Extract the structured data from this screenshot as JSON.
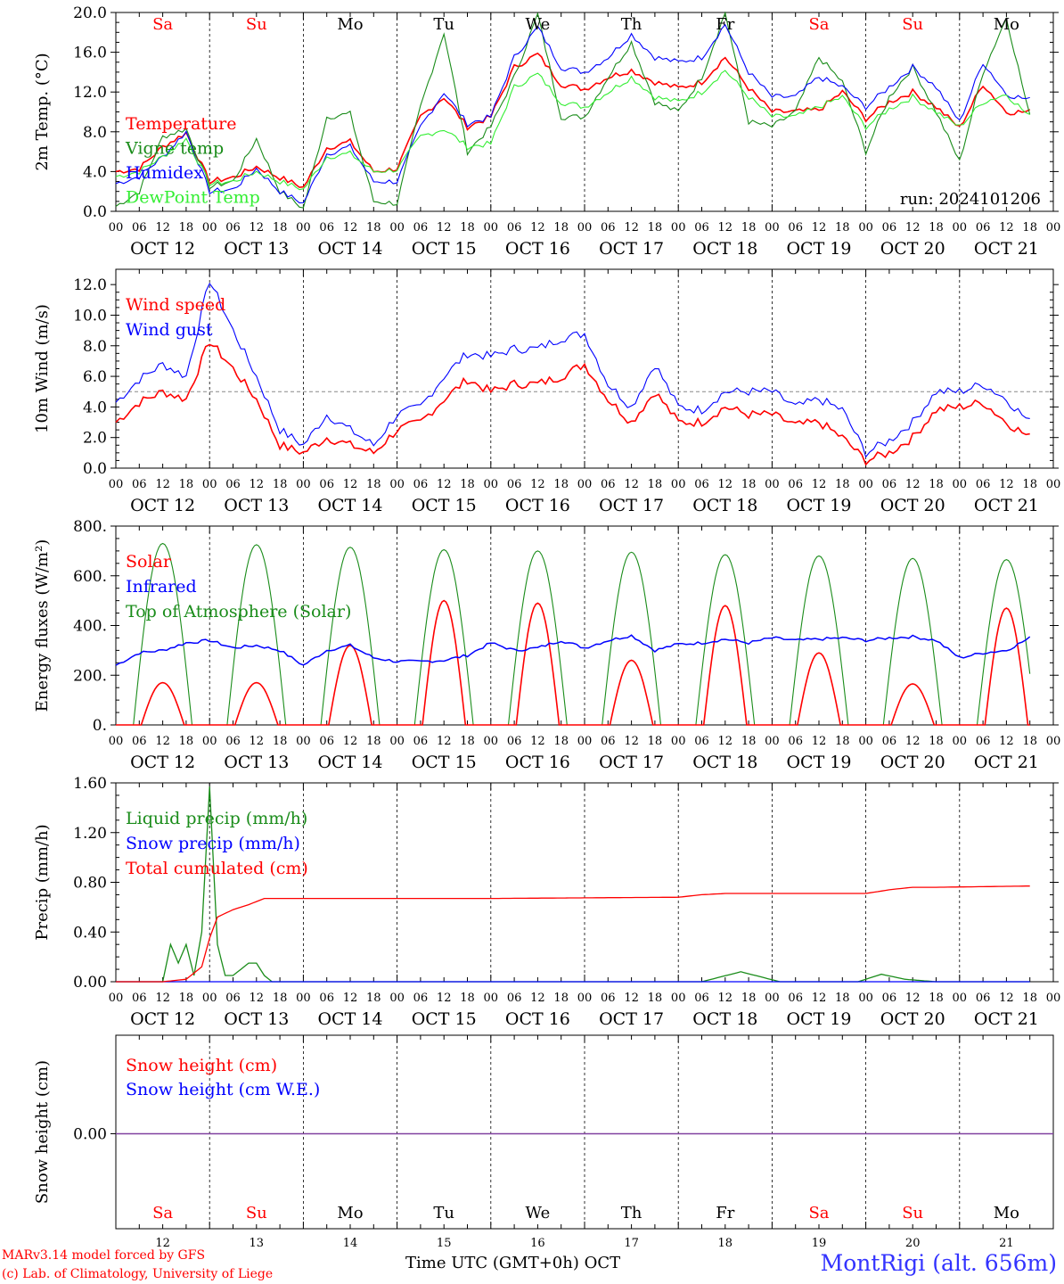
{
  "chart_data": [
    {
      "type": "line",
      "ylabel": "2m Temp. (°C)",
      "ylim": [
        0,
        20
      ],
      "yticks": [
        "0.0",
        "4.0",
        "8.0",
        "12.0",
        "16.0",
        "20.0"
      ],
      "annotation": "run: 2024101206",
      "series": [
        {
          "name": "Temperature",
          "color": "#ff0000",
          "hours": [
            0,
            6,
            12,
            18,
            24,
            30,
            36,
            42,
            48,
            54,
            60,
            66,
            72,
            78,
            84,
            90,
            96,
            102,
            108,
            114,
            120,
            126,
            132,
            138,
            144,
            150,
            156,
            162,
            168,
            174,
            180,
            186,
            192,
            198,
            204,
            210,
            216,
            222,
            228,
            234
          ],
          "values": [
            4.0,
            4.3,
            6.5,
            7.9,
            3.0,
            3.4,
            4.5,
            3.4,
            2.4,
            6.4,
            7.0,
            4.0,
            4.3,
            9.5,
            11.5,
            8.5,
            9.5,
            14.5,
            15.8,
            12.8,
            12.3,
            13.5,
            14.2,
            13.0,
            12.4,
            13.0,
            15.5,
            12.4,
            10.0,
            10.0,
            10.2,
            12.0,
            9.3,
            11.0,
            12.0,
            10.5,
            8.4,
            12.8,
            10.0,
            10.0
          ]
        },
        {
          "name": "Vigne temp",
          "color": "#1a8c1a",
          "hours": [
            0,
            6,
            12,
            18,
            24,
            30,
            36,
            42,
            48,
            54,
            60,
            66,
            72,
            78,
            84,
            90,
            96,
            102,
            108,
            114,
            120,
            126,
            132,
            138,
            144,
            150,
            156,
            162,
            168,
            174,
            180,
            186,
            192,
            198,
            204,
            210,
            216,
            222,
            228,
            234
          ],
          "values": [
            0.5,
            2.0,
            7.5,
            8.3,
            2.5,
            3.0,
            7.3,
            2.0,
            0.3,
            9.5,
            9.8,
            1.0,
            0.8,
            10.5,
            18.0,
            6.0,
            8.5,
            13.5,
            19.8,
            9.5,
            9.5,
            13.5,
            17.0,
            11.0,
            10.0,
            13.5,
            20.0,
            9.0,
            8.5,
            10.0,
            15.5,
            13.0,
            6.0,
            11.5,
            14.5,
            10.0,
            5.0,
            14.0,
            19.5,
            9.5
          ]
        },
        {
          "name": "Humidex",
          "color": "#0000ff",
          "hours": [
            0,
            6,
            12,
            18,
            24,
            30,
            36,
            42,
            48,
            54,
            60,
            66,
            72,
            78,
            84,
            90,
            96,
            102,
            108,
            114,
            120,
            126,
            132,
            138,
            144,
            150,
            156,
            162,
            168,
            174,
            180,
            186,
            192,
            198,
            204,
            210,
            216,
            222,
            228,
            234
          ],
          "values": [
            2.8,
            3.5,
            5.5,
            8.0,
            2.0,
            2.2,
            4.3,
            2.0,
            0.8,
            5.8,
            6.5,
            3.0,
            3.0,
            8.5,
            12.0,
            8.8,
            9.5,
            15.5,
            18.5,
            14.5,
            14.0,
            15.5,
            17.8,
            15.5,
            15.0,
            15.5,
            18.8,
            14.0,
            11.5,
            11.5,
            13.5,
            12.5,
            10.5,
            12.5,
            14.5,
            12.5,
            9.0,
            15.0,
            11.8,
            11.2
          ]
        },
        {
          "name": "DewPoint Temp",
          "color": "#33ee33",
          "hours": [
            0,
            6,
            12,
            18,
            24,
            30,
            36,
            42,
            48,
            54,
            60,
            66,
            72,
            78,
            84,
            90,
            96,
            102,
            108,
            114,
            120,
            126,
            132,
            138,
            144,
            150,
            156,
            162,
            168,
            174,
            180,
            186,
            192,
            198,
            204,
            210,
            216,
            222,
            228,
            234
          ],
          "values": [
            3.5,
            4.0,
            5.5,
            7.3,
            2.8,
            3.0,
            4.0,
            3.0,
            2.2,
            5.5,
            5.8,
            4.0,
            4.2,
            7.5,
            8.3,
            6.5,
            6.8,
            12.5,
            13.8,
            11.0,
            10.5,
            12.0,
            13.5,
            11.5,
            11.0,
            12.0,
            14.2,
            11.5,
            9.5,
            9.5,
            10.5,
            11.5,
            8.5,
            10.3,
            11.5,
            10.0,
            8.5,
            11.0,
            11.8,
            9.5
          ]
        }
      ]
    },
    {
      "type": "line",
      "ylabel": "10m Wind (m/s)",
      "ylim": [
        0,
        13
      ],
      "yticks": [
        "0.0",
        "2.0",
        "4.0",
        "6.0",
        "8.0",
        "10.0",
        "12.0"
      ],
      "reference_line": 5.0,
      "series": [
        {
          "name": "Wind speed",
          "color": "#ff0000",
          "hours": [
            0,
            6,
            12,
            18,
            24,
            30,
            36,
            42,
            48,
            54,
            60,
            66,
            72,
            78,
            84,
            90,
            96,
            102,
            108,
            114,
            120,
            126,
            132,
            138,
            144,
            150,
            156,
            162,
            168,
            174,
            180,
            186,
            192,
            198,
            204,
            210,
            216,
            222,
            228,
            234
          ],
          "values": [
            3.0,
            4.3,
            5.0,
            4.5,
            8.3,
            6.5,
            4.5,
            1.5,
            1.0,
            2.0,
            1.5,
            1.0,
            2.5,
            3.0,
            4.5,
            5.8,
            5.0,
            5.5,
            5.5,
            6.0,
            6.8,
            4.5,
            3.0,
            5.0,
            3.0,
            3.0,
            4.0,
            3.5,
            3.5,
            2.8,
            3.0,
            2.0,
            0.5,
            1.0,
            2.0,
            3.8,
            4.0,
            4.3,
            3.0,
            2.0
          ]
        },
        {
          "name": "Wind gust",
          "color": "#0000ff",
          "hours": [
            0,
            6,
            12,
            18,
            24,
            30,
            36,
            42,
            48,
            54,
            60,
            66,
            72,
            78,
            84,
            90,
            96,
            102,
            108,
            114,
            120,
            126,
            132,
            138,
            144,
            150,
            156,
            162,
            168,
            174,
            180,
            186,
            192,
            198,
            204,
            210,
            216,
            222,
            228,
            234
          ],
          "values": [
            4.3,
            5.8,
            6.8,
            6.0,
            12.3,
            9.0,
            6.0,
            2.5,
            1.5,
            3.5,
            2.5,
            1.5,
            3.5,
            4.0,
            6.0,
            7.5,
            7.3,
            7.8,
            7.8,
            8.5,
            8.8,
            5.5,
            4.0,
            6.8,
            4.0,
            3.8,
            5.0,
            5.0,
            5.0,
            4.0,
            4.5,
            3.8,
            1.0,
            1.8,
            3.0,
            5.0,
            5.0,
            5.5,
            4.5,
            3.0
          ]
        }
      ]
    },
    {
      "type": "line",
      "ylabel": "Energy fluxes (W/m²)",
      "ylim": [
        0,
        800
      ],
      "yticks": [
        "0.",
        "200.",
        "400.",
        "600.",
        "800."
      ],
      "series": [
        {
          "name": "Solar",
          "color": "#ff0000",
          "peaks": [
            170,
            170,
            320,
            500,
            490,
            260,
            480,
            290,
            165,
            470
          ]
        },
        {
          "name": "Infrared",
          "color": "#0000ff",
          "hours": [
            0,
            6,
            12,
            18,
            24,
            30,
            36,
            42,
            48,
            54,
            60,
            66,
            72,
            78,
            84,
            90,
            96,
            102,
            108,
            114,
            120,
            126,
            132,
            138,
            144,
            150,
            156,
            162,
            168,
            174,
            180,
            186,
            192,
            198,
            204,
            210,
            216,
            222,
            228,
            234
          ],
          "values": [
            240,
            290,
            300,
            330,
            340,
            310,
            320,
            300,
            240,
            300,
            320,
            270,
            255,
            255,
            260,
            280,
            330,
            300,
            310,
            340,
            310,
            340,
            360,
            300,
            325,
            330,
            345,
            330,
            350,
            340,
            345,
            350,
            340,
            350,
            355,
            340,
            270,
            290,
            300,
            350
          ]
        },
        {
          "name": "Top of Atmosphere (Solar)",
          "color": "#1a8c1a",
          "peaks": [
            730,
            725,
            715,
            705,
            700,
            695,
            685,
            680,
            670,
            665
          ]
        }
      ]
    },
    {
      "type": "line",
      "ylabel": "Precip (mm/h)",
      "ylim": [
        0,
        1.6
      ],
      "yticks": [
        "0.00",
        "0.40",
        "0.80",
        "1.20",
        "1.60"
      ],
      "series": [
        {
          "name": "Liquid precip (mm/h)",
          "color": "#1a8c1a",
          "hours": [
            0,
            12,
            14,
            16,
            18,
            20,
            22,
            24,
            26,
            28,
            30,
            32,
            34,
            36,
            38,
            40,
            48,
            96,
            144,
            150,
            160,
            170,
            190,
            196,
            202,
            210,
            234
          ],
          "values": [
            0,
            0,
            0.3,
            0.15,
            0.3,
            0.05,
            0.4,
            1.57,
            0.3,
            0.05,
            0.05,
            0.1,
            0.15,
            0.15,
            0.05,
            0,
            0,
            0,
            0,
            0,
            0.08,
            0,
            0,
            0.06,
            0.02,
            0,
            0
          ]
        },
        {
          "name": "Snow precip (mm/h)",
          "color": "#0000ff",
          "hours": [
            0,
            234
          ],
          "values": [
            0,
            0
          ]
        },
        {
          "name": "Total cumulated (cm)",
          "color": "#ff0000",
          "hours": [
            0,
            12,
            18,
            22,
            24,
            26,
            30,
            34,
            38,
            48,
            96,
            144,
            150,
            156,
            192,
            198,
            204,
            210,
            234
          ],
          "values": [
            0,
            0,
            0.02,
            0.12,
            0.35,
            0.52,
            0.58,
            0.62,
            0.67,
            0.67,
            0.67,
            0.68,
            0.7,
            0.71,
            0.71,
            0.74,
            0.76,
            0.76,
            0.77
          ]
        }
      ]
    },
    {
      "type": "line",
      "ylabel": "Snow height (cm)",
      "yticks": [
        "0.00"
      ],
      "series": [
        {
          "name": "Snow height (cm)",
          "color": "#ff0000",
          "hours": [
            0,
            234
          ],
          "values": [
            0,
            0
          ]
        },
        {
          "name": "Snow height (cm W.E.)",
          "color": "#0000ff",
          "hours": [
            0,
            234
          ],
          "values": [
            0,
            0
          ]
        }
      ]
    }
  ],
  "x_axis": {
    "hour_ticks": [
      "00",
      "06",
      "12",
      "18"
    ],
    "end_tick": "00",
    "day_labels": [
      "OCT 12",
      "OCT 13",
      "OCT 14",
      "OCT 15",
      "OCT 16",
      "OCT 17",
      "OCT 18",
      "OCT 19",
      "OCT 20",
      "OCT 21"
    ],
    "weekdays": [
      "Sa",
      "Su",
      "Mo",
      "Tu",
      "We",
      "Th",
      "Fr",
      "Sa",
      "Su",
      "Mo"
    ],
    "weekday_colors": [
      "#ff0000",
      "#ff0000",
      "#000000",
      "#000000",
      "#000000",
      "#000000",
      "#000000",
      "#ff0000",
      "#ff0000",
      "#000000"
    ],
    "day_numbers": [
      "12",
      "13",
      "14",
      "15",
      "16",
      "17",
      "18",
      "19",
      "20",
      "21"
    ],
    "label": "Time UTC (GMT+0h)",
    "month": "OCT"
  },
  "footer": {
    "model": "MARv3.14 model forced by GFS",
    "credit": "(c) Lab. of Climatology, University of Liege",
    "station": "MontRigi (alt. 656m)"
  }
}
